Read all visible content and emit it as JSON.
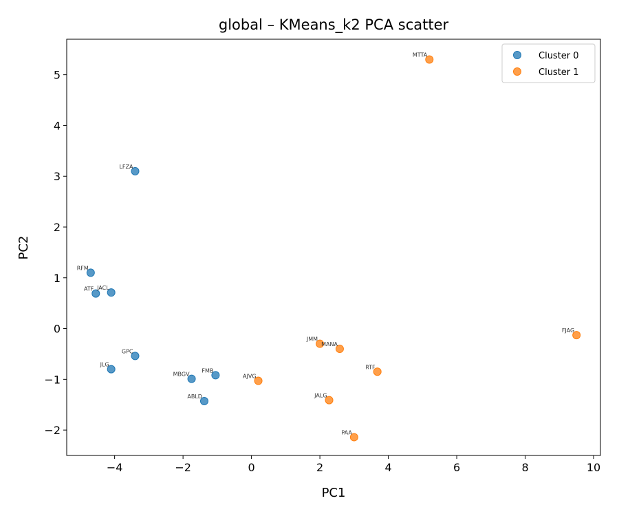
{
  "chart_data": {
    "type": "scatter",
    "title": "global – KMeans_k2 PCA scatter",
    "xlabel": "PC1",
    "ylabel": "PC2",
    "xlim": [
      -5.4,
      10.2
    ],
    "ylim": [
      -2.5,
      5.7
    ],
    "xticks": [
      -4,
      -2,
      0,
      2,
      4,
      6,
      8,
      10
    ],
    "yticks": [
      -2,
      -1,
      0,
      1,
      2,
      3,
      4,
      5
    ],
    "xtick_labels": [
      "−4",
      "−2",
      "0",
      "2",
      "4",
      "6",
      "8",
      "10"
    ],
    "ytick_labels": [
      "−2",
      "−1",
      "0",
      "1",
      "2",
      "3",
      "4",
      "5"
    ],
    "grid": false,
    "legend": "top-right",
    "series": [
      {
        "name": "Cluster 0",
        "color": "#1f77b4",
        "points": [
          {
            "label": "LFZA",
            "x": -3.4,
            "y": 3.1
          },
          {
            "label": "RFM",
            "x": -4.7,
            "y": 1.1
          },
          {
            "label": "ATF",
            "x": -4.55,
            "y": 0.69
          },
          {
            "label": "JACL",
            "x": -4.1,
            "y": 0.71
          },
          {
            "label": "GPC",
            "x": -3.4,
            "y": -0.54
          },
          {
            "label": "JLG",
            "x": -4.1,
            "y": -0.8
          },
          {
            "label": "MBGV",
            "x": -1.75,
            "y": -0.99
          },
          {
            "label": "FMB",
            "x": -1.05,
            "y": -0.92
          },
          {
            "label": "ABLD",
            "x": -1.38,
            "y": -1.43
          }
        ]
      },
      {
        "name": "Cluster 1",
        "color": "#ff7f0e",
        "points": [
          {
            "label": "MTTA",
            "x": 5.2,
            "y": 5.3
          },
          {
            "label": "FJAG",
            "x": 9.5,
            "y": -0.13
          },
          {
            "label": "JMM",
            "x": 2.0,
            "y": -0.3
          },
          {
            "label": "MANA",
            "x": 2.58,
            "y": -0.4
          },
          {
            "label": "RTF",
            "x": 3.68,
            "y": -0.85
          },
          {
            "label": "AJVG",
            "x": 0.2,
            "y": -1.03
          },
          {
            "label": "JALG",
            "x": 2.27,
            "y": -1.41
          },
          {
            "label": "PAA",
            "x": 3.0,
            "y": -2.14
          }
        ]
      }
    ]
  }
}
